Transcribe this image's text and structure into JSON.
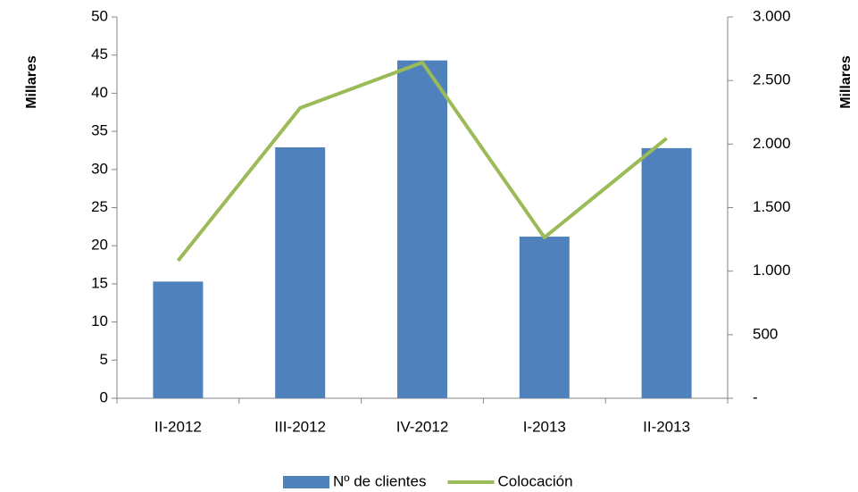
{
  "chart_data": {
    "type": "bar",
    "categories": [
      "II-2012",
      "III-2012",
      "IV-2012",
      "I-2013",
      "II-2013"
    ],
    "series": [
      {
        "name": "Nº de clientes",
        "type": "bar",
        "color": "#4f81bd",
        "values": [
          15.3,
          32.9,
          44.3,
          21.2,
          32.8
        ]
      },
      {
        "name": "Colocación",
        "type": "line",
        "axis": "y2",
        "color": "#9bbb59",
        "values": [
          1082,
          2284,
          2642,
          1265,
          2045
        ]
      }
    ],
    "ylabel": "Millares",
    "y2label": "Millares",
    "ylim": [
      0,
      50
    ],
    "yticks": [
      0,
      5,
      10,
      15,
      20,
      25,
      30,
      35,
      40,
      45,
      50
    ],
    "y2lim": [
      0,
      3000
    ],
    "y2ticks": [
      {
        "value": 0,
        "label": "-"
      },
      500,
      {
        "value": 1000,
        "label": "1.000"
      },
      {
        "value": 1500,
        "label": "1.500"
      },
      {
        "value": 2000,
        "label": "2.000"
      },
      {
        "value": 2500,
        "label": "2.500"
      },
      {
        "value": 3000,
        "label": "3.000"
      }
    ],
    "legend": "bottom"
  }
}
